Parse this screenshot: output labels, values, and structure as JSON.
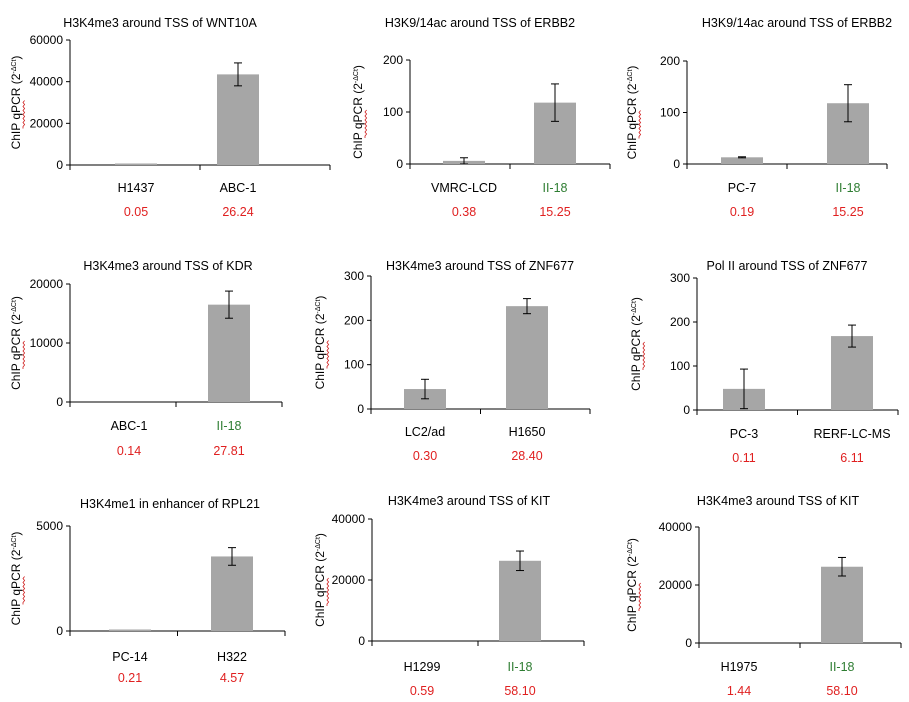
{
  "colors": {
    "bar": "#a6a6a6",
    "note": "#e02020",
    "green_label": "#2e7d32",
    "axis": "#000000"
  },
  "ylabel_text": "ChIP qPCR (2",
  "ylabel_exp": "-ΔCt",
  "ylabel_close": ")",
  "chart_data": [
    {
      "type": "bar",
      "title": "H3K4me3 around TSS of WNT10A",
      "categories": [
        "H1437",
        "ABC-1"
      ],
      "values": [
        300,
        43500
      ],
      "errors": [
        0,
        5500
      ],
      "ylim": [
        0,
        60000
      ],
      "yticks": [
        "0",
        "20000",
        "40000",
        "60000"
      ],
      "notes": [
        "0.05",
        "26.24"
      ],
      "green": [
        false,
        false
      ]
    },
    {
      "type": "bar",
      "title": "H3K9/14ac around TSS of ERBB2",
      "categories": [
        "VMRC-LCD",
        "II-18"
      ],
      "values": [
        6,
        118
      ],
      "errors": [
        6,
        36
      ],
      "ylim": [
        0,
        200
      ],
      "yticks": [
        "0",
        "100",
        "200"
      ],
      "notes": [
        "0.38",
        "15.25"
      ],
      "green": [
        false,
        true
      ]
    },
    {
      "type": "bar",
      "title": "H3K9/14ac around TSS of ERBB2",
      "categories": [
        "PC-7",
        "II-18"
      ],
      "values": [
        13,
        118
      ],
      "errors": [
        1,
        36
      ],
      "ylim": [
        0,
        200
      ],
      "yticks": [
        "0",
        "100",
        "200"
      ],
      "notes": [
        "0.19",
        "15.25"
      ],
      "green": [
        false,
        true
      ]
    },
    {
      "type": "bar",
      "title": "H3K4me3 around TSS of KDR",
      "categories": [
        "ABC-1",
        "II-18"
      ],
      "values": [
        0,
        16500
      ],
      "errors": [
        0,
        2300
      ],
      "ylim": [
        0,
        20000
      ],
      "yticks": [
        "0",
        "10000",
        "20000"
      ],
      "notes": [
        "0.14",
        "27.81"
      ],
      "green": [
        false,
        true
      ]
    },
    {
      "type": "bar",
      "title": "H3K4me3 around TSS of ZNF677",
      "categories": [
        "LC2/ad",
        "H1650"
      ],
      "values": [
        45,
        232
      ],
      "errors": [
        22,
        17
      ],
      "ylim": [
        0,
        300
      ],
      "yticks": [
        "0",
        "100",
        "200",
        "300"
      ],
      "notes": [
        "0.30",
        "28.40"
      ],
      "green": [
        false,
        false
      ]
    },
    {
      "type": "bar",
      "title": "Pol II around TSS of ZNF677",
      "categories": [
        "PC-3",
        "RERF-LC-MS"
      ],
      "values": [
        48,
        168
      ],
      "errors": [
        45,
        25
      ],
      "ylim": [
        0,
        300
      ],
      "yticks": [
        "0",
        "100",
        "200",
        "300"
      ],
      "notes": [
        "0.11",
        "6.11"
      ],
      "green": [
        false,
        false
      ]
    },
    {
      "type": "bar",
      "title": "H3K4me1 in enhancer of RPL21",
      "categories": [
        "PC-14",
        "H322"
      ],
      "values": [
        30,
        3550
      ],
      "errors": [
        0,
        420
      ],
      "ylim": [
        0,
        5000
      ],
      "yticks": [
        "0",
        "5000"
      ],
      "notes": [
        "0.21",
        "4.57"
      ],
      "green": [
        false,
        false
      ]
    },
    {
      "type": "bar",
      "title": "H3K4me3 around TSS of KIT",
      "categories": [
        "H1299",
        "II-18"
      ],
      "values": [
        0,
        26300
      ],
      "errors": [
        0,
        3200
      ],
      "ylim": [
        0,
        40000
      ],
      "yticks": [
        "0",
        "20000",
        "40000"
      ],
      "notes": [
        "0.59",
        "58.10"
      ],
      "green": [
        false,
        true
      ]
    },
    {
      "type": "bar",
      "title": "H3K4me3 around TSS of KIT",
      "categories": [
        "H1975",
        "II-18"
      ],
      "values": [
        0,
        26300
      ],
      "errors": [
        0,
        3200
      ],
      "ylim": [
        0,
        40000
      ],
      "yticks": [
        "0",
        "20000",
        "40000"
      ],
      "notes": [
        "1.44",
        "58.10"
      ],
      "green": [
        false,
        true
      ]
    }
  ]
}
